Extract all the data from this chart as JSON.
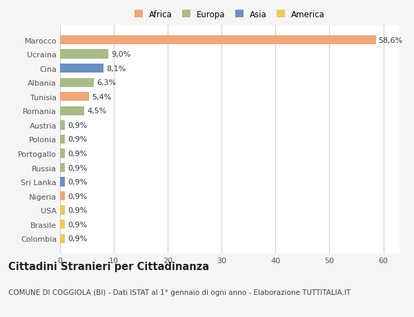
{
  "countries": [
    "Marocco",
    "Ucraina",
    "Cina",
    "Albania",
    "Tunisia",
    "Romania",
    "Austria",
    "Polonia",
    "Portogallo",
    "Russia",
    "Sri Lanka",
    "Nigeria",
    "USA",
    "Brasile",
    "Colombia"
  ],
  "values": [
    58.6,
    9.0,
    8.1,
    6.3,
    5.4,
    4.5,
    0.9,
    0.9,
    0.9,
    0.9,
    0.9,
    0.9,
    0.9,
    0.9,
    0.9
  ],
  "labels": [
    "58,6%",
    "9,0%",
    "8,1%",
    "6,3%",
    "5,4%",
    "4,5%",
    "0,9%",
    "0,9%",
    "0,9%",
    "0,9%",
    "0,9%",
    "0,9%",
    "0,9%",
    "0,9%",
    "0,9%"
  ],
  "continents": [
    "Africa",
    "Europa",
    "Asia",
    "Europa",
    "Africa",
    "Europa",
    "Europa",
    "Europa",
    "Europa",
    "Europa",
    "Asia",
    "Africa",
    "America",
    "America",
    "America"
  ],
  "continent_colors": {
    "Africa": "#F0A878",
    "Europa": "#A8BC88",
    "Asia": "#6B8FC0",
    "America": "#F0C858"
  },
  "legend_order": [
    "Africa",
    "Europa",
    "Asia",
    "America"
  ],
  "background_color": "#f5f5f5",
  "plot_bg_color": "#ffffff",
  "title": "Cittadini Stranieri per Cittadinanza",
  "subtitle": "COMUNE DI COGGIOLA (BI) - Dati ISTAT al 1° gennaio di ogni anno - Elaborazione TUTTITALIA.IT",
  "xlim": [
    0,
    63
  ],
  "xticks": [
    0,
    10,
    20,
    30,
    40,
    50,
    60
  ],
  "bar_height": 0.65,
  "label_fontsize": 8,
  "tick_fontsize": 8,
  "title_fontsize": 10.5,
  "subtitle_fontsize": 7.5
}
